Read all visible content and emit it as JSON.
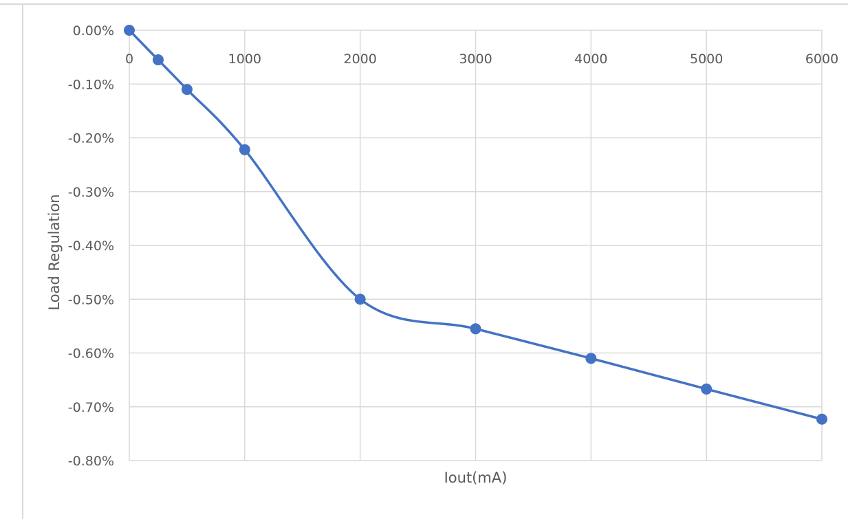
{
  "chart_data": {
    "type": "line",
    "title": "",
    "xlabel": "Iout(mA)",
    "ylabel": "Load Regulation",
    "x_ticks": [
      "0",
      "1000",
      "2000",
      "3000",
      "4000",
      "5000",
      "6000"
    ],
    "y_ticks": [
      "0.00%",
      "-0.10%",
      "-0.20%",
      "-0.30%",
      "-0.40%",
      "-0.50%",
      "-0.60%",
      "-0.70%",
      "-0.80%"
    ],
    "xlim": [
      0,
      6000
    ],
    "ylim": [
      -0.8,
      0
    ],
    "x_axis_position": "top",
    "grid": true,
    "smooth": true,
    "line_color": "#4472C4",
    "grid_color": "#D9D9D9",
    "frame_color": "#D9D9D9",
    "series": [
      {
        "x": [
          0,
          250,
          500,
          1000,
          2000,
          3000,
          4000,
          5000,
          6000
        ],
        "y": [
          0.0,
          -0.055,
          -0.11,
          -0.222,
          -0.5,
          -0.555,
          -0.61,
          -0.667,
          -0.723
        ]
      }
    ]
  }
}
